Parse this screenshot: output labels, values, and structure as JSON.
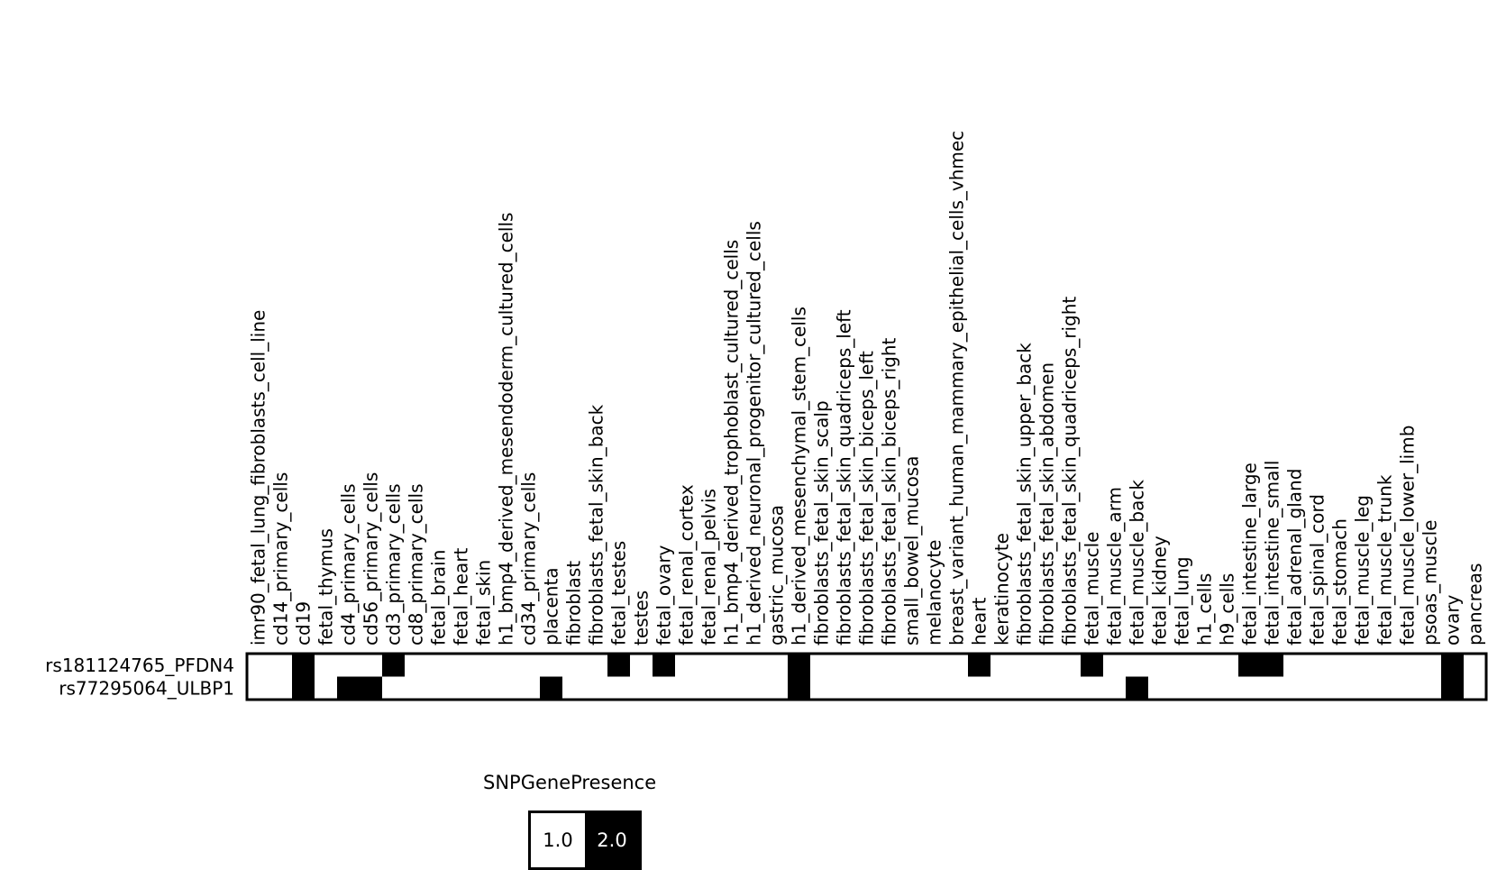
{
  "chart_data": {
    "type": "heatmap",
    "columns": [
      "imr90_fetal_lung_fibroblasts_cell_line",
      "cd14_primary_cells",
      "cd19",
      "fetal_thymus",
      "cd4_primary_cells",
      "cd56_primary_cells",
      "cd3_primary_cells",
      "cd8_primary_cells",
      "fetal_brain",
      "fetal_heart",
      "fetal_skin",
      "h1_bmp4_derived_mesendoderm_cultured_cells",
      "cd34_primary_cells",
      "placenta",
      "fibroblast",
      "fibroblasts_fetal_skin_back",
      "fetal_testes",
      "testes",
      "fetal_ovary",
      "fetal_renal_cortex",
      "fetal_renal_pelvis",
      "h1_bmp4_derived_trophoblast_cultured_cells",
      "h1_derived_neuronal_progenitor_cultured_cells",
      "gastric_mucosa",
      "h1_derived_mesenchymal_stem_cells",
      "fibroblasts_fetal_skin_scalp",
      "fibroblasts_fetal_skin_quadriceps_left",
      "fibroblasts_fetal_skin_biceps_left",
      "fibroblasts_fetal_skin_biceps_right",
      "small_bowel_mucosa",
      "melanocyte",
      "breast_variant_human_mammary_epithelial_cells_vhmec",
      "heart",
      "keratinocyte",
      "fibroblasts_fetal_skin_upper_back",
      "fibroblasts_fetal_skin_abdomen",
      "fibroblasts_fetal_skin_quadriceps_right",
      "fetal_muscle",
      "fetal_muscle_arm",
      "fetal_muscle_back",
      "fetal_kidney",
      "fetal_lung",
      "h1_cells",
      "h9_cells",
      "fetal_intestine_large",
      "fetal_intestine_small",
      "fetal_adrenal_gland",
      "fetal_spinal_cord",
      "fetal_stomach",
      "fetal_muscle_leg",
      "fetal_muscle_trunk",
      "fetal_muscle_lower_limb",
      "psoas_muscle",
      "ovary",
      "pancreas"
    ],
    "rows": [
      "rs181124765_PFDN4",
      "rs77295064_ULBP1"
    ],
    "values": [
      [
        1,
        1,
        2,
        1,
        1,
        1,
        2,
        1,
        1,
        1,
        1,
        1,
        1,
        1,
        1,
        1,
        2,
        1,
        2,
        1,
        1,
        1,
        1,
        1,
        2,
        1,
        1,
        1,
        1,
        1,
        1,
        1,
        2,
        1,
        1,
        1,
        1,
        2,
        1,
        1,
        1,
        1,
        1,
        1,
        2,
        2,
        1,
        1,
        1,
        1,
        1,
        1,
        1,
        2,
        1
      ],
      [
        1,
        1,
        2,
        1,
        2,
        2,
        1,
        1,
        1,
        1,
        1,
        1,
        1,
        2,
        1,
        1,
        1,
        1,
        1,
        1,
        1,
        1,
        1,
        1,
        2,
        1,
        1,
        1,
        1,
        1,
        1,
        1,
        1,
        1,
        1,
        1,
        1,
        1,
        1,
        2,
        1,
        1,
        1,
        1,
        1,
        1,
        1,
        1,
        1,
        1,
        1,
        1,
        1,
        2,
        1
      ]
    ],
    "color_map": {
      "1.0": "#ffffff",
      "2.0": "#000000"
    },
    "legend": {
      "title": "SNPGenePresence",
      "entries": [
        {
          "label": "1.0",
          "color": "#ffffff",
          "text_color": "#000000"
        },
        {
          "label": "2.0",
          "color": "#000000",
          "text_color": "#ffffff"
        }
      ]
    }
  }
}
